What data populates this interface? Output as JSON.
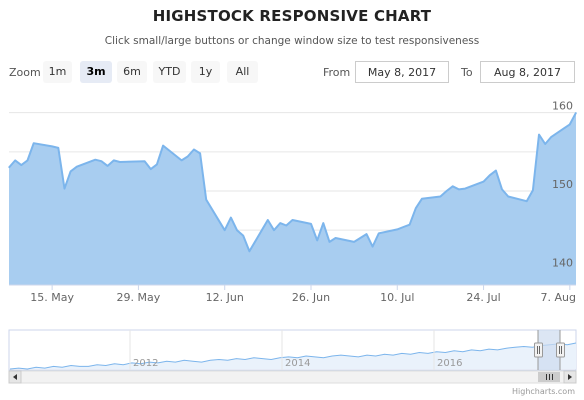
{
  "title": "HIGHSTOCK RESPONSIVE CHART",
  "subtitle": "Click small/large buttons or change window size to test responsiveness",
  "range_selector": {
    "zoom_label": "Zoom",
    "buttons": [
      {
        "label": "1m",
        "active": false
      },
      {
        "label": "3m",
        "active": true
      },
      {
        "label": "6m",
        "active": false
      },
      {
        "label": "YTD",
        "active": false
      },
      {
        "label": "1y",
        "active": false
      },
      {
        "label": "All",
        "active": false
      }
    ],
    "from_label": "From",
    "from_value": "May 8, 2017",
    "to_label": "To",
    "to_value": "Aug 8, 2017"
  },
  "credits": "Highcharts.com",
  "colors": {
    "series_line": "#7cb5ec",
    "series_fill": "#a8cdf0",
    "navigator_mask": "#cddcf0"
  },
  "chart_data": {
    "type": "area",
    "x_ticks": [
      "15. May",
      "29. May",
      "12. Jun",
      "26. Jun",
      "10. Jul",
      "24. Jul",
      "7. Aug"
    ],
    "y_ticks": [
      140,
      150,
      160
    ],
    "ylim": [
      138,
      162
    ],
    "x": [
      "2017-05-08",
      "2017-05-09",
      "2017-05-10",
      "2017-05-11",
      "2017-05-12",
      "2017-05-15",
      "2017-05-16",
      "2017-05-17",
      "2017-05-18",
      "2017-05-19",
      "2017-05-22",
      "2017-05-23",
      "2017-05-24",
      "2017-05-25",
      "2017-05-26",
      "2017-05-30",
      "2017-05-31",
      "2017-06-01",
      "2017-06-02",
      "2017-06-05",
      "2017-06-06",
      "2017-06-07",
      "2017-06-08",
      "2017-06-09",
      "2017-06-12",
      "2017-06-13",
      "2017-06-14",
      "2017-06-15",
      "2017-06-16",
      "2017-06-19",
      "2017-06-20",
      "2017-06-21",
      "2017-06-22",
      "2017-06-23",
      "2017-06-26",
      "2017-06-27",
      "2017-06-28",
      "2017-06-29",
      "2017-06-30",
      "2017-07-03",
      "2017-07-05",
      "2017-07-06",
      "2017-07-07",
      "2017-07-10",
      "2017-07-11",
      "2017-07-12",
      "2017-07-13",
      "2017-07-14",
      "2017-07-17",
      "2017-07-18",
      "2017-07-19",
      "2017-07-20",
      "2017-07-21",
      "2017-07-24",
      "2017-07-25",
      "2017-07-26",
      "2017-07-27",
      "2017-07-28",
      "2017-07-31",
      "2017-08-01",
      "2017-08-02",
      "2017-08-03",
      "2017-08-04",
      "2017-08-07",
      "2017-08-08"
    ],
    "values": [
      153.0,
      153.9,
      153.3,
      153.9,
      156.1,
      155.7,
      155.5,
      150.3,
      152.5,
      153.1,
      154.0,
      153.8,
      153.2,
      153.9,
      153.7,
      153.8,
      152.8,
      153.4,
      155.8,
      153.9,
      154.4,
      155.3,
      154.8,
      148.9,
      145.0,
      146.6,
      145.0,
      144.3,
      142.3,
      146.3,
      145.0,
      145.9,
      145.6,
      146.3,
      145.8,
      143.7,
      145.9,
      143.5,
      144.0,
      143.5,
      144.5,
      142.9,
      144.6,
      145.1,
      145.4,
      145.7,
      147.8,
      149.0,
      149.3,
      150.0,
      150.6,
      150.2,
      150.3,
      151.2,
      152.0,
      152.6,
      150.2,
      149.3,
      148.7,
      150.1,
      157.2,
      156.0,
      156.9,
      158.5,
      160.0
    ],
    "navigator": {
      "x_ticks": [
        "2012",
        "2014",
        "2016"
      ],
      "values": [
        2,
        3,
        2,
        4,
        3,
        5,
        4,
        6,
        5,
        5,
        7,
        6,
        8,
        7,
        9,
        8,
        10,
        9,
        11,
        10,
        12,
        11,
        10,
        12,
        13,
        12,
        14,
        13,
        15,
        14,
        13,
        15,
        16,
        15,
        17,
        16,
        15,
        17,
        18,
        17,
        16,
        18,
        17,
        19,
        18,
        20,
        19,
        21,
        20,
        22,
        21,
        23,
        22,
        24,
        23,
        25,
        24,
        26,
        27,
        28,
        27,
        29,
        30,
        31,
        30,
        32
      ]
    }
  }
}
